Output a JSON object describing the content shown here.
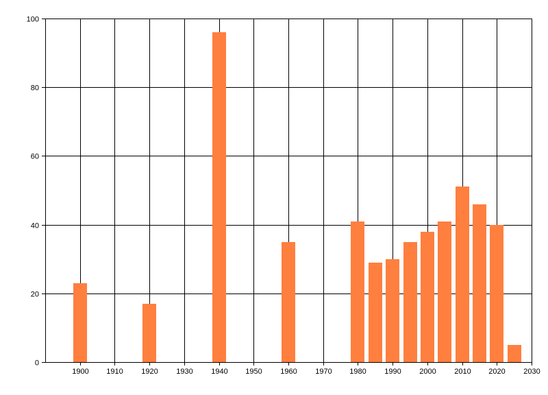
{
  "chart_data": {
    "type": "bar",
    "x": [
      1900,
      1920,
      1940,
      1960,
      1980,
      1985,
      1990,
      1995,
      2000,
      2005,
      2010,
      2015,
      2020,
      2025
    ],
    "values": [
      23,
      17,
      96,
      35,
      41,
      29,
      30,
      35,
      38,
      41,
      51,
      46,
      40,
      5
    ],
    "title": "",
    "xlabel": "",
    "ylabel": "",
    "xlim": [
      1890,
      2030
    ],
    "ylim": [
      0,
      100
    ],
    "x_ticks": [
      1900,
      1910,
      1920,
      1930,
      1940,
      1950,
      1960,
      1970,
      1980,
      1990,
      2000,
      2010,
      2020,
      2030
    ],
    "y_ticks": [
      0,
      20,
      40,
      60,
      80,
      100
    ],
    "grid": true,
    "legend": "none",
    "bar_color": "#ff7f3f"
  }
}
